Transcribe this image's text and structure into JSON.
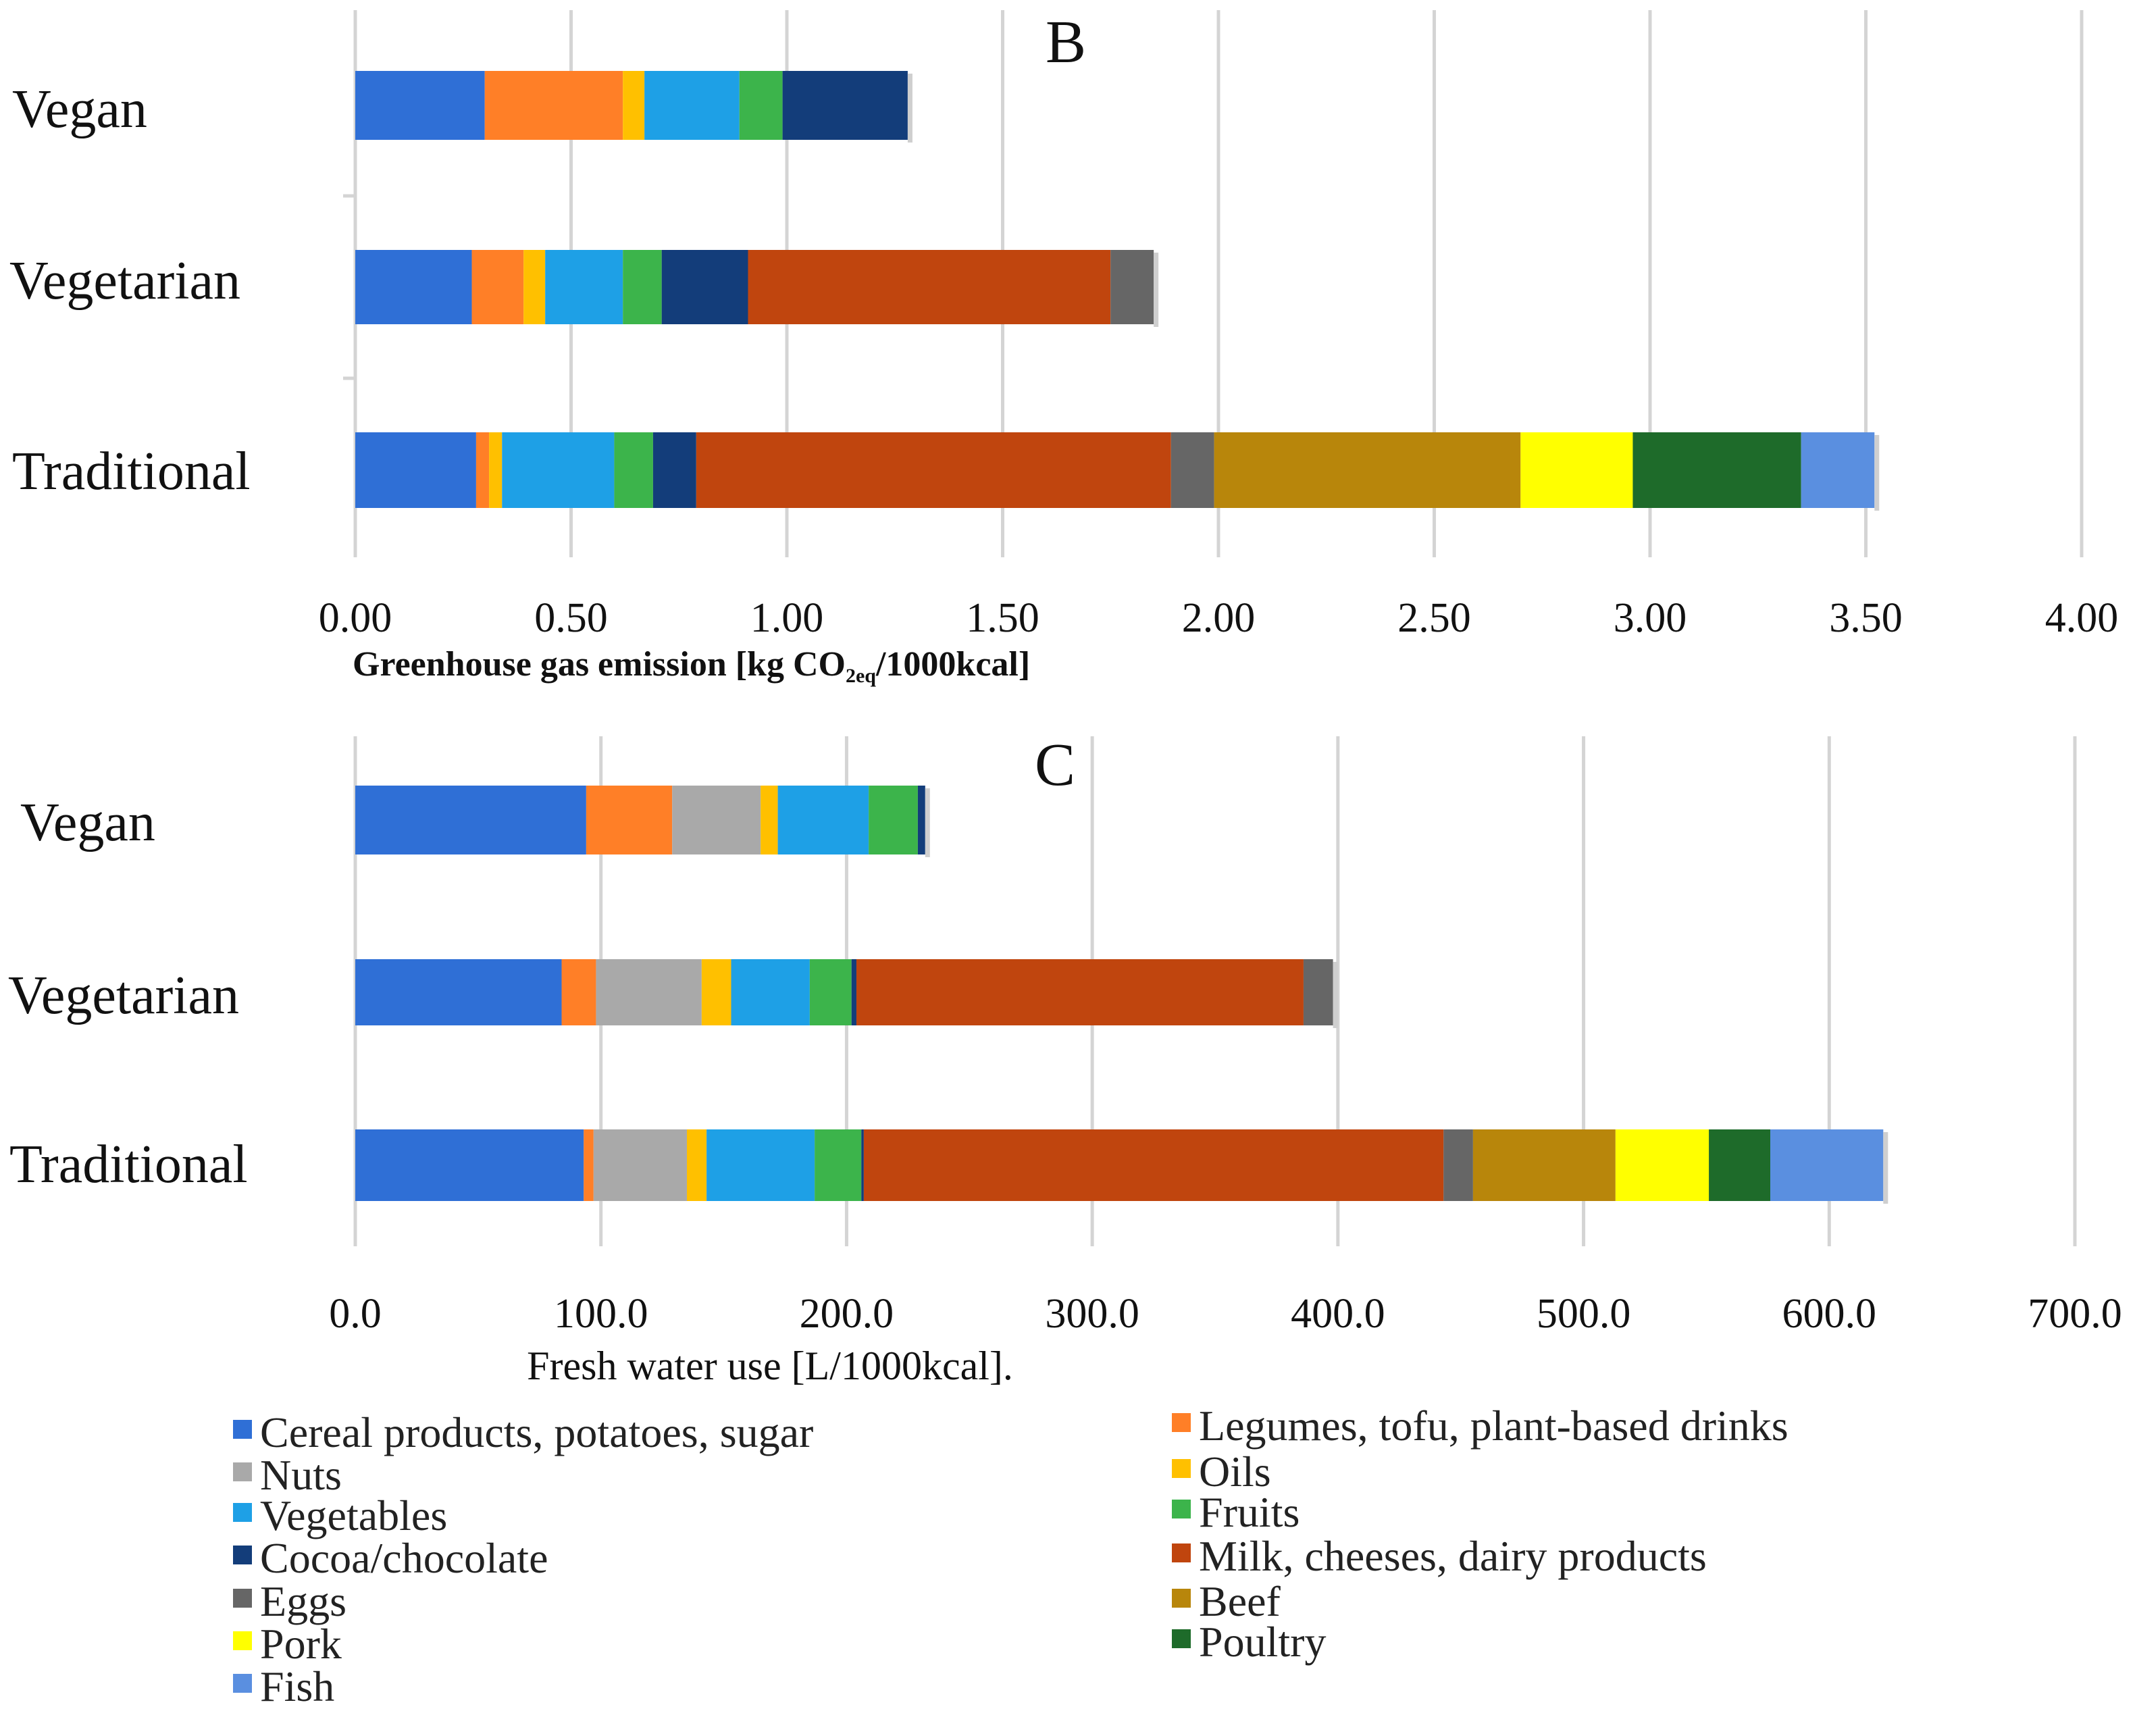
{
  "legend_items": [
    {
      "label": "Cereal products, potatoes, sugar",
      "color": "#2f6fd6"
    },
    {
      "label": "Legumes, tofu, plant-based drinks",
      "color": "#ff7f27"
    },
    {
      "label": "Nuts",
      "color": "#a9a9a9"
    },
    {
      "label": "Oils",
      "color": "#ffc000"
    },
    {
      "label": "Vegetables",
      "color": "#1ea0e6"
    },
    {
      "label": "Fruits",
      "color": "#3cb44b"
    },
    {
      "label": "Cocoa/chocolate",
      "color": "#133d7a"
    },
    {
      "label": "Milk, cheeses, dairy products",
      "color": "#c0450e"
    },
    {
      "label": "Eggs",
      "color": "#666666"
    },
    {
      "label": "Beef",
      "color": "#b8860b"
    },
    {
      "label": "Pork",
      "color": "#ffff00"
    },
    {
      "label": "Poultry",
      "color": "#1e6b2a"
    },
    {
      "label": "Fish",
      "color": "#5a8fe0"
    }
  ],
  "chart_data": [
    {
      "type": "bar",
      "orientation": "horizontal",
      "stacked": true,
      "panel_label": "B",
      "xlabel_main": "Greenhouse gas emission [kg CO",
      "xlabel_sub": "2eq",
      "xlabel_tail": "/1000kcal]",
      "xlim": [
        0,
        4
      ],
      "tick_labels": [
        "0.00",
        "0.50",
        "1.00",
        "1.50",
        "2.00",
        "2.50",
        "3.00",
        "3.50",
        "4.00"
      ],
      "categories": [
        "Vegan",
        "Vegetarian",
        "Traditional"
      ],
      "series": [
        {
          "name": "Cereal products, potatoes, sugar",
          "values": [
            0.3,
            0.27,
            0.28
          ]
        },
        {
          "name": "Legumes, tofu, plant-based drinks",
          "values": [
            0.32,
            0.12,
            0.03
          ]
        },
        {
          "name": "Nuts",
          "values": [
            0.0,
            0.0,
            0.0
          ]
        },
        {
          "name": "Oils",
          "values": [
            0.05,
            0.05,
            0.03
          ]
        },
        {
          "name": "Vegetables",
          "values": [
            0.22,
            0.18,
            0.26
          ]
        },
        {
          "name": "Fruits",
          "values": [
            0.1,
            0.09,
            0.09
          ]
        },
        {
          "name": "Cocoa/chocolate",
          "values": [
            0.29,
            0.2,
            0.1
          ]
        },
        {
          "name": "Milk, cheeses, dairy products",
          "values": [
            0.0,
            0.84,
            1.1
          ]
        },
        {
          "name": "Eggs",
          "values": [
            0.0,
            0.1,
            0.1
          ]
        },
        {
          "name": "Beef",
          "values": [
            0.0,
            0.0,
            0.71
          ]
        },
        {
          "name": "Pork",
          "values": [
            0.0,
            0.0,
            0.26
          ]
        },
        {
          "name": "Poultry",
          "values": [
            0.0,
            0.0,
            0.39
          ]
        },
        {
          "name": "Fish",
          "values": [
            0.0,
            0.0,
            0.17
          ]
        }
      ]
    },
    {
      "type": "bar",
      "orientation": "horizontal",
      "stacked": true,
      "panel_label": "C",
      "xlabel": "Fresh water use [L/1000kcal].",
      "xlim": [
        0,
        700
      ],
      "tick_labels": [
        "0.0",
        "100.0",
        "200.0",
        "300.0",
        "400.0",
        "500.0",
        "600.0",
        "700.0"
      ],
      "categories": [
        "Vegan",
        "Vegetarian",
        "Traditional"
      ],
      "series": [
        {
          "name": "Cereal products, potatoes, sugar",
          "values": [
            94,
            84,
            93
          ]
        },
        {
          "name": "Legumes, tofu, plant-based drinks",
          "values": [
            35,
            14,
            4
          ]
        },
        {
          "name": "Nuts",
          "values": [
            36,
            43,
            38
          ]
        },
        {
          "name": "Oils",
          "values": [
            7,
            12,
            8
          ]
        },
        {
          "name": "Vegetables",
          "values": [
            37,
            32,
            44
          ]
        },
        {
          "name": "Fruits",
          "values": [
            20,
            17,
            19
          ]
        },
        {
          "name": "Cocoa/chocolate",
          "values": [
            3,
            2,
            1
          ]
        },
        {
          "name": "Milk, cheeses, dairy products",
          "values": [
            0,
            182,
            236
          ]
        },
        {
          "name": "Eggs",
          "values": [
            0,
            12,
            12
          ]
        },
        {
          "name": "Beef",
          "values": [
            0,
            0,
            58
          ]
        },
        {
          "name": "Pork",
          "values": [
            0,
            0,
            38
          ]
        },
        {
          "name": "Poultry",
          "values": [
            0,
            0,
            25
          ]
        },
        {
          "name": "Fish",
          "values": [
            0,
            0,
            46
          ]
        }
      ]
    }
  ]
}
